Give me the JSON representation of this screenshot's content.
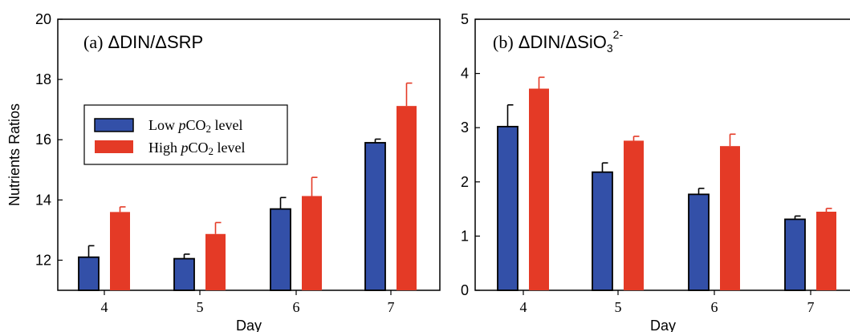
{
  "colors": {
    "low": "#3350a8",
    "high": "#e43a26",
    "axis": "#000000"
  },
  "legend": {
    "low_prefix": "Low ",
    "high_prefix": "High ",
    "italic_p": "p",
    "co": "CO",
    "sub2": "2",
    "level": " level"
  },
  "chart_data": [
    {
      "type": "bar",
      "panel_label": "(a)",
      "title": "ΔDIN/ΔSRP",
      "xlabel": "Day",
      "ylabel": "Nutrients Ratios",
      "categories": [
        "4",
        "5",
        "6",
        "7"
      ],
      "ylim": [
        11,
        20
      ],
      "yticks": [
        12,
        14,
        16,
        18,
        20
      ],
      "legend_position": "left, middle",
      "series": [
        {
          "name": "Low pCO2 level",
          "values": [
            12.1,
            12.05,
            13.7,
            15.9
          ],
          "errors": [
            0.38,
            0.15,
            0.38,
            0.12
          ]
        },
        {
          "name": "High pCO2 level",
          "values": [
            13.6,
            12.87,
            14.13,
            17.12
          ],
          "errors": [
            0.17,
            0.38,
            0.62,
            0.76
          ]
        }
      ]
    },
    {
      "type": "bar",
      "panel_label": "(b)",
      "title": "ΔDIN/ΔSiO3^2-",
      "title_main": "ΔDIN/ΔSiO",
      "title_sub": "3",
      "title_sup": "2-",
      "xlabel": "Day",
      "ylabel": "",
      "categories": [
        "4",
        "5",
        "6",
        "7"
      ],
      "ylim": [
        0,
        5
      ],
      "yticks": [
        0,
        1,
        2,
        3,
        4,
        5
      ],
      "series": [
        {
          "name": "Low pCO2 level",
          "values": [
            3.02,
            2.18,
            1.77,
            1.31
          ],
          "errors": [
            0.4,
            0.17,
            0.11,
            0.06
          ]
        },
        {
          "name": "High pCO2 level",
          "values": [
            3.72,
            2.76,
            2.66,
            1.45
          ],
          "errors": [
            0.21,
            0.08,
            0.22,
            0.06
          ]
        }
      ]
    }
  ]
}
